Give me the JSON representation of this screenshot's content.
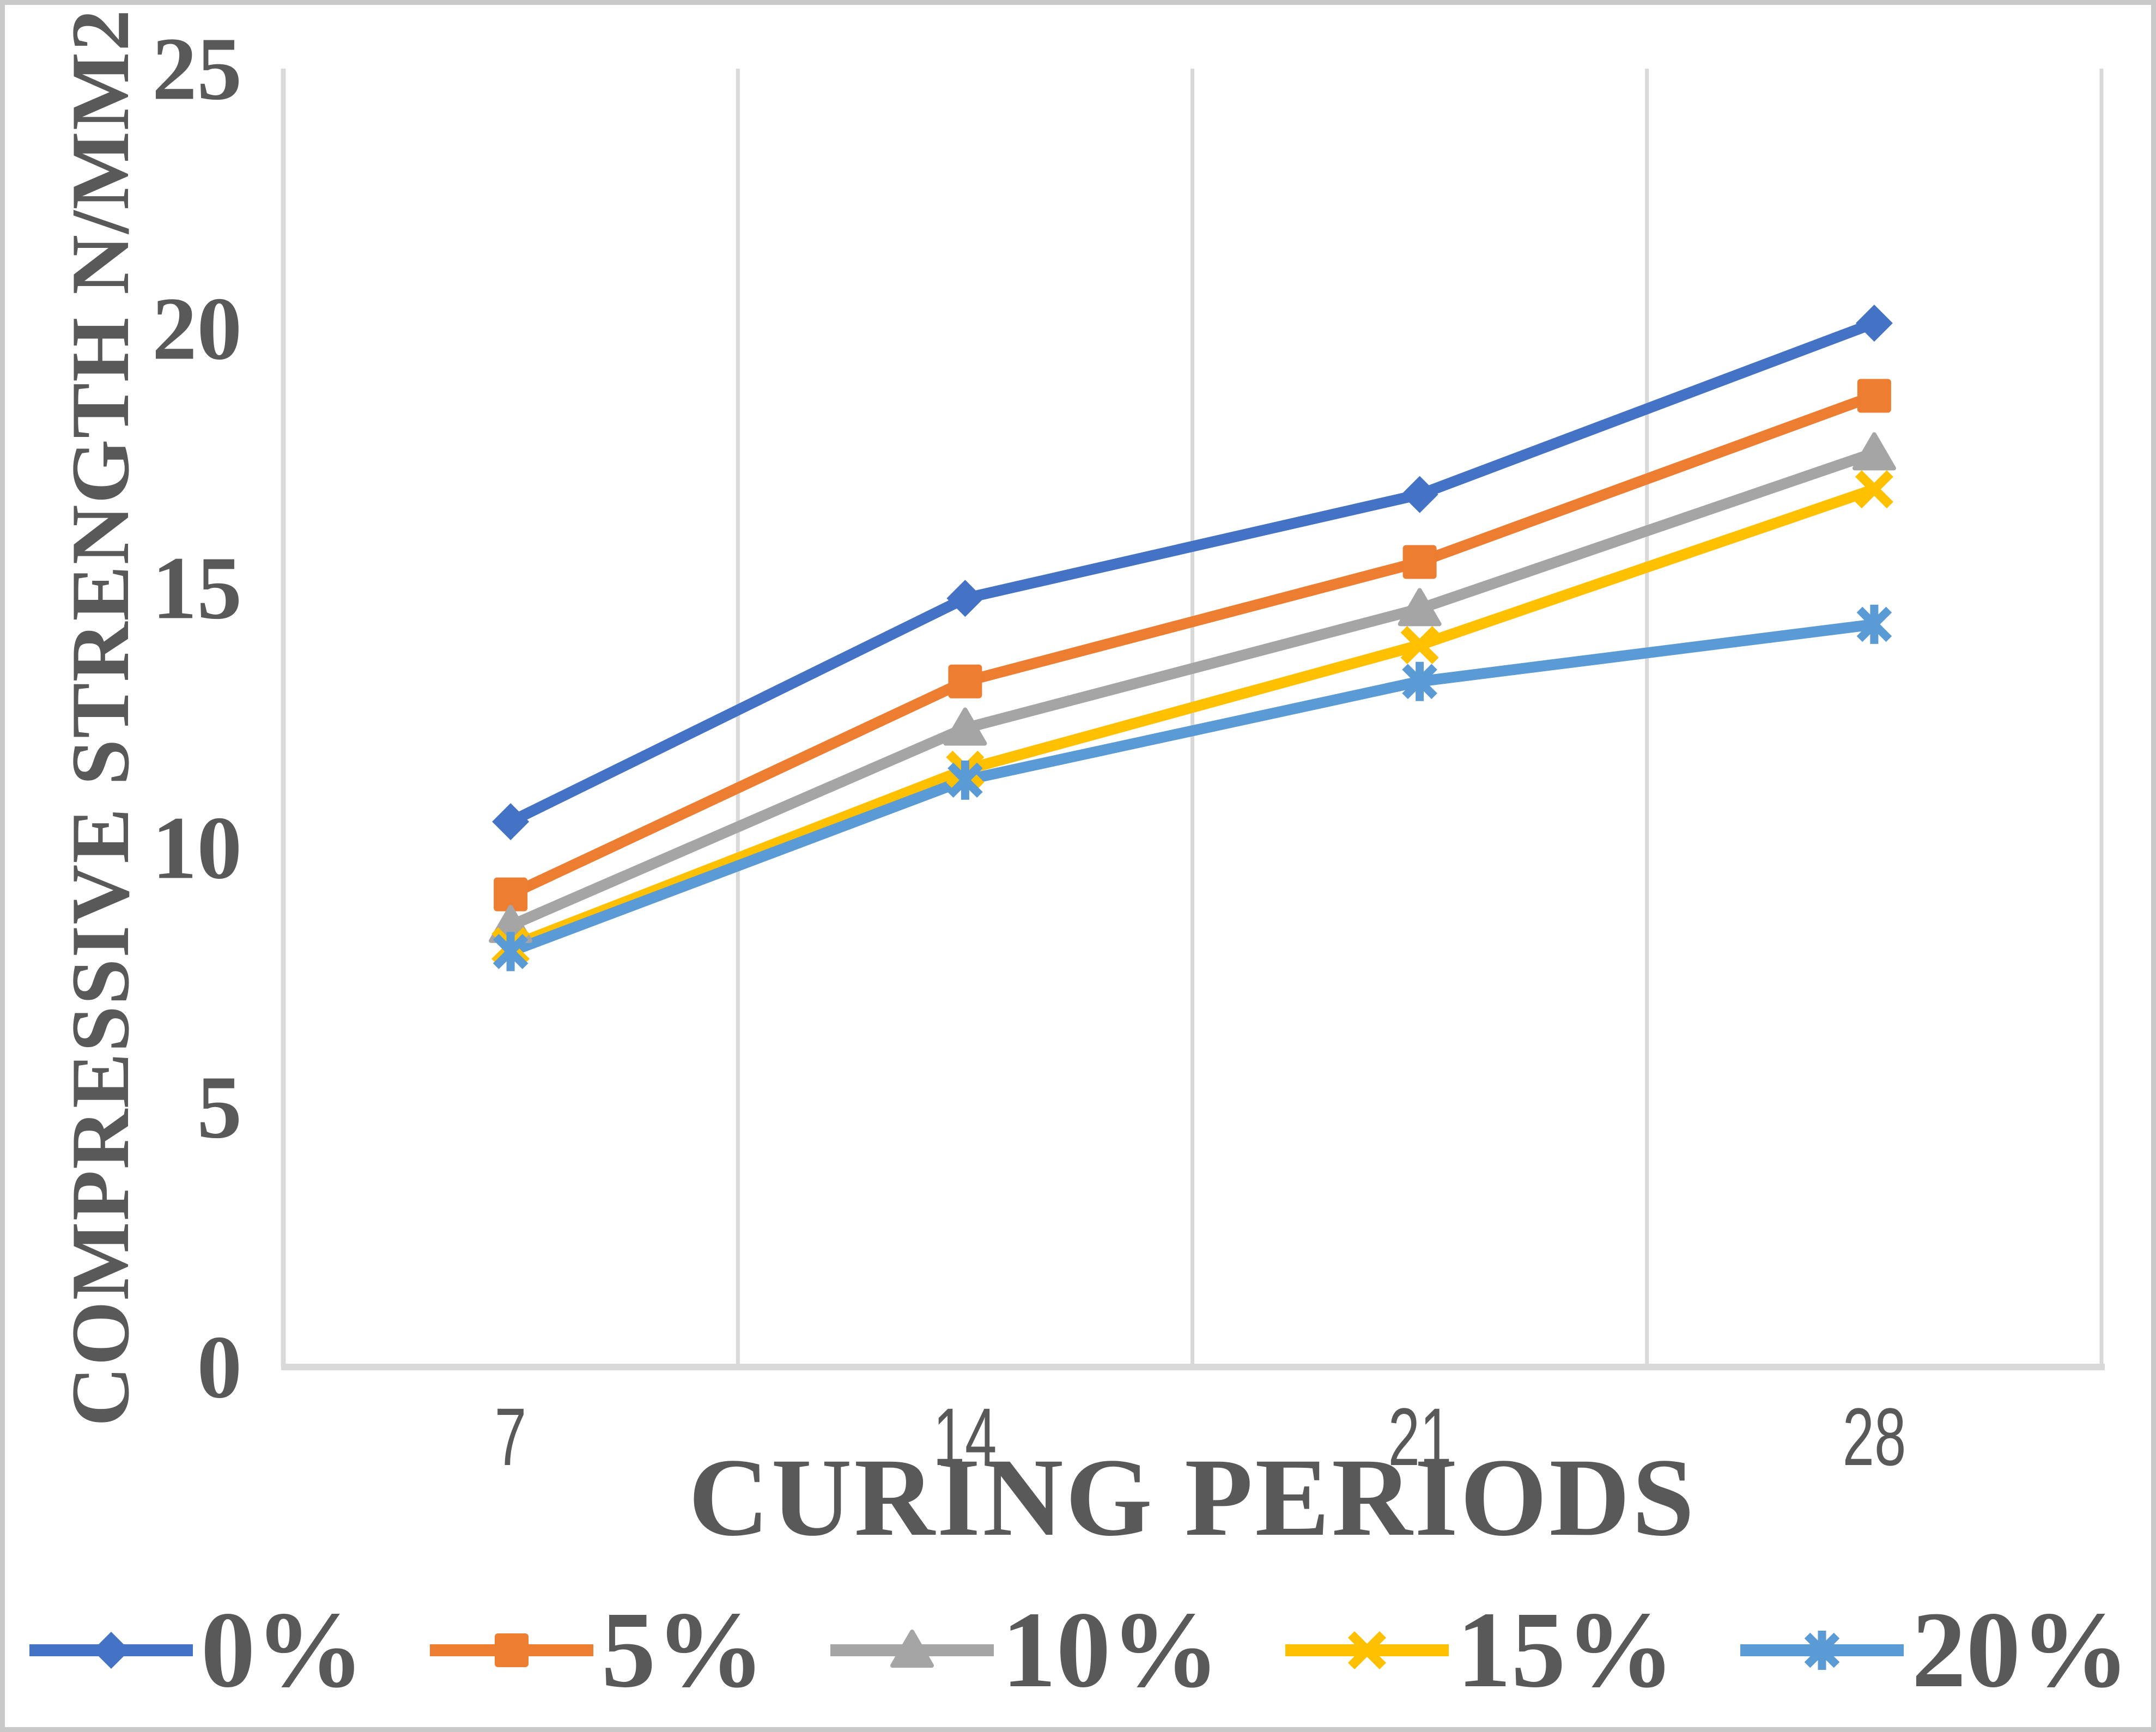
{
  "chart_data": {
    "type": "line",
    "title": "",
    "xlabel": "CURING PERIODS",
    "ylabel": "COMPRESSIVE STRENGTH N/MM2",
    "categories": [
      "7",
      "14",
      "21",
      "28"
    ],
    "y_ticks": [
      0,
      5,
      10,
      15,
      20,
      25
    ],
    "ylim": [
      0,
      25
    ],
    "grid": "vertical-only",
    "legend_position": "bottom-center",
    "series": [
      {
        "name": "0%",
        "color": "#4472C4",
        "marker": "diamond",
        "values": [
          10.5,
          14.8,
          16.8,
          20.1
        ]
      },
      {
        "name": "5%",
        "color": "#ED7D31",
        "marker": "square",
        "values": [
          9.1,
          13.2,
          15.5,
          18.7
        ]
      },
      {
        "name": "10%",
        "color": "#A5A5A5",
        "marker": "triangle",
        "values": [
          8.5,
          12.3,
          14.6,
          17.6
        ]
      },
      {
        "name": "15%",
        "color": "#FFC000",
        "marker": "x",
        "values": [
          8.1,
          11.5,
          13.9,
          16.9
        ]
      },
      {
        "name": "20%",
        "color": "#5B9BD5",
        "marker": "asterisk",
        "values": [
          8.0,
          11.3,
          13.2,
          14.3
        ]
      }
    ],
    "colors": {
      "text": "#595959",
      "gridline": "#D9D9D9",
      "axis_line": "#D9D9D9",
      "frame_border": "#C9C9C9",
      "background": "#FFFFFF"
    }
  }
}
